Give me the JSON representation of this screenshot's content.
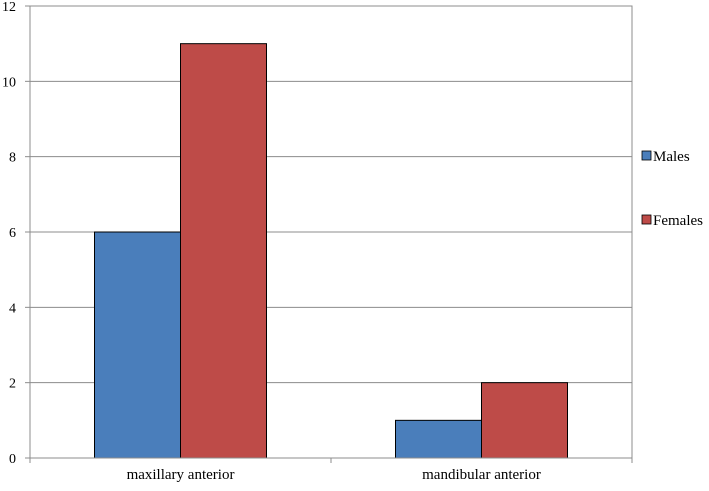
{
  "chart_data": {
    "type": "bar",
    "categories": [
      "maxillary anterior",
      "mandibular anterior"
    ],
    "series": [
      {
        "name": "Males",
        "values": [
          6,
          1
        ],
        "color": "#4a7ebb"
      },
      {
        "name": "Females",
        "values": [
          11,
          2
        ],
        "color": "#be4b48"
      }
    ],
    "ylim": [
      0,
      12
    ],
    "yticks": [
      "0",
      "2",
      "4",
      "6",
      "8",
      "10",
      "12"
    ],
    "grid": true,
    "legend": "right"
  }
}
